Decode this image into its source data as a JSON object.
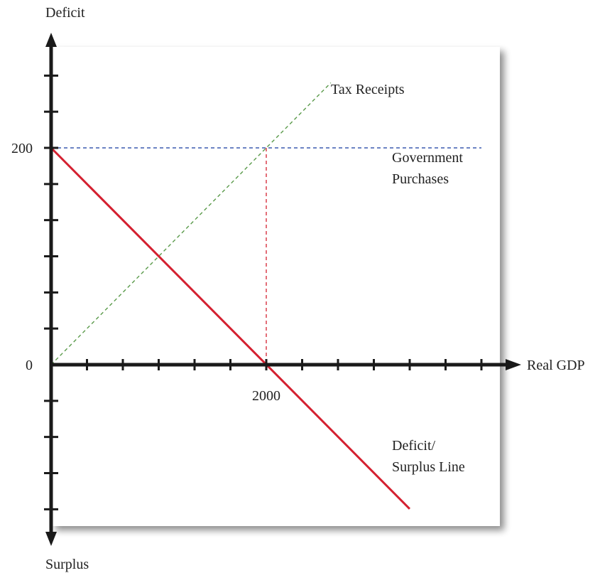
{
  "chart_data": {
    "type": "line",
    "y_axis_top_label": "Deficit",
    "y_axis_bottom_label": "Surplus",
    "x_axis_label": "Real GDP",
    "x_tick_labels": [
      {
        "value": 2000,
        "text": "2000"
      }
    ],
    "y_tick_labels": [
      {
        "value": 200,
        "text": "200"
      },
      {
        "value": 0,
        "text": "0"
      }
    ],
    "xlim": [
      0,
      4000
    ],
    "ylim": [
      -140,
      200
    ],
    "series": [
      {
        "name": "Tax Receipts",
        "style": "dashed",
        "color": "#5a9a4a",
        "points": [
          [
            0,
            0
          ],
          [
            2600,
            260
          ]
        ]
      },
      {
        "name": "Government Purchases",
        "style": "dashed",
        "color": "#3b5bb0",
        "points": [
          [
            0,
            200
          ],
          [
            4000,
            200
          ]
        ]
      },
      {
        "name": "Deficit/ Surplus Line",
        "style": "solid",
        "color": "#d42030",
        "points": [
          [
            0,
            200
          ],
          [
            3333,
            -133
          ]
        ]
      }
    ],
    "reference_lines": [
      {
        "style": "dashed",
        "color": "#d42030",
        "points": [
          [
            2000,
            200
          ],
          [
            2000,
            0
          ]
        ]
      }
    ],
    "series_labels": [
      {
        "series": 0,
        "lines": [
          "Tax Receipts"
        ]
      },
      {
        "series": 1,
        "lines": [
          "Government",
          "Purchases"
        ]
      },
      {
        "series": 2,
        "lines": [
          "Deficit/",
          "Surplus Line"
        ]
      }
    ],
    "grid": false,
    "legend": "none"
  }
}
